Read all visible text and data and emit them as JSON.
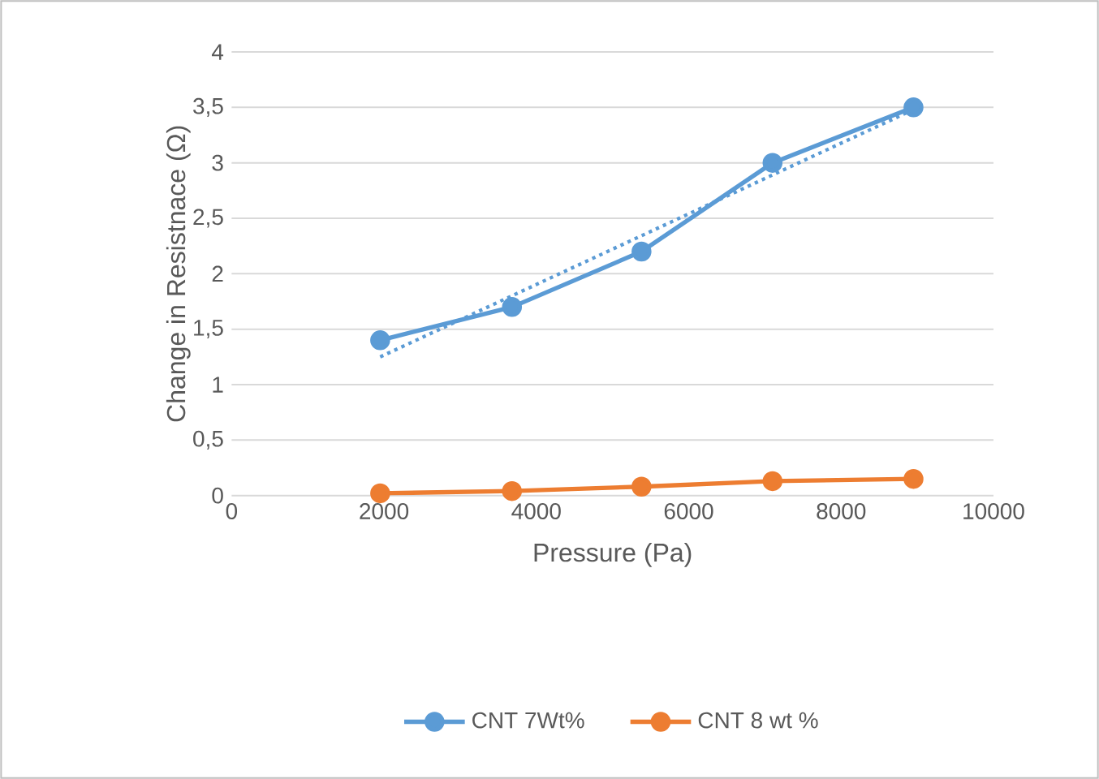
{
  "chart_data": {
    "type": "line",
    "xlabel": "Pressure (Pa)",
    "ylabel": "Change in Resistnace (Ω)",
    "xlim": [
      0,
      10000
    ],
    "xticks": [
      0,
      2000,
      4000,
      6000,
      8000,
      10000
    ],
    "ylim": [
      0,
      4
    ],
    "yticks": [
      0,
      {
        "value": 0.5,
        "label": "0,5"
      },
      1,
      {
        "value": 1.5,
        "label": "1,5"
      },
      2,
      {
        "value": 2.5,
        "label": "2,5"
      },
      3,
      {
        "value": 3.5,
        "label": "3,5"
      },
      4
    ],
    "grid": "y",
    "legend": "bottom",
    "marker": "circle",
    "line_style": "solid",
    "x": [
      1950,
      3680,
      5380,
      7100,
      8950
    ],
    "series": [
      {
        "name": "CNT 7Wt%",
        "color": "#5b9bd5",
        "values": [
          1.4,
          1.7,
          2.2,
          3.0,
          3.5
        ]
      },
      {
        "name": "CNT 8 wt %",
        "color": "#ed7d31",
        "values": [
          0.02,
          0.04,
          0.08,
          0.13,
          0.15
        ]
      },
      {
        "type": "line",
        "color": "#5b9bd5",
        "x": [
          1950,
          8950
        ],
        "values": [
          1.25,
          3.48
        ],
        "marker": "none",
        "line_style": "dotted"
      }
    ]
  }
}
